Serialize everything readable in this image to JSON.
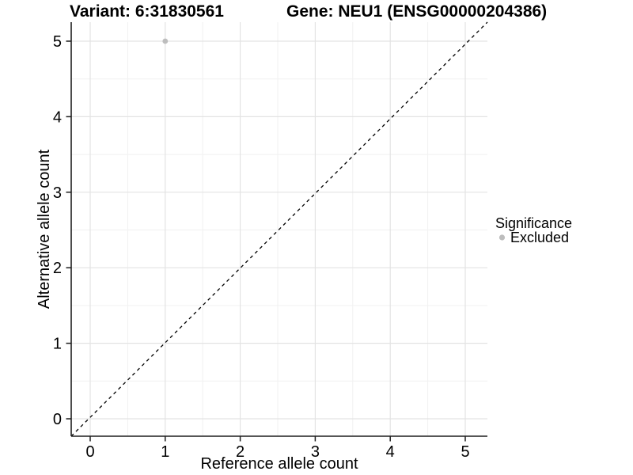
{
  "titles": {
    "variant": "Variant: 6:31830561",
    "gene": "Gene: NEU1 (ENSG00000204386)"
  },
  "chart_data": {
    "type": "scatter",
    "title_left": "Variant: 6:31830561",
    "title_right": "Gene: NEU1 (ENSG00000204386)",
    "xlabel": "Reference allele count",
    "ylabel": "Alternative allele count",
    "xticks": [
      "0",
      "1",
      "2",
      "3",
      "4",
      "5"
    ],
    "yticks": [
      "0",
      "1",
      "2",
      "3",
      "4",
      "5"
    ],
    "xlim": [
      -0.25,
      5.3
    ],
    "ylim": [
      -0.23,
      5.25
    ],
    "grid": "major+minor",
    "points": [
      {
        "x": 1,
        "y": 5,
        "significance": "Excluded"
      }
    ],
    "reference_line": {
      "equation": "y = x",
      "style": "dashed",
      "color": "#000000"
    },
    "legend": {
      "position": "right",
      "title": "Significance",
      "entries": [
        {
          "label": "Excluded",
          "color": "#bdbdbd",
          "marker": "circle"
        }
      ]
    },
    "colors": {
      "point": "#bdbdbd",
      "grid_major": "#e3e3e3",
      "grid_minor": "#f1f1f1",
      "axis": "#1f1f1f",
      "text": "#000000",
      "background": "#ffffff"
    }
  }
}
